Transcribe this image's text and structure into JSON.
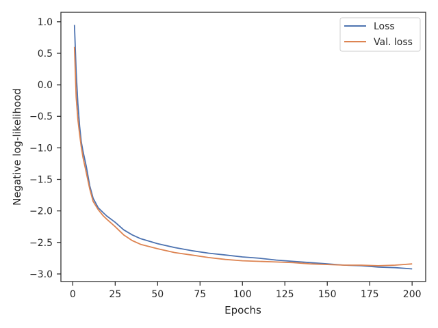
{
  "chart_data": {
    "type": "line",
    "title": "",
    "xlabel": "Epochs",
    "ylabel": "Negative log-likelihood",
    "xlim": [
      -7,
      208
    ],
    "ylim": [
      -3.12,
      1.15
    ],
    "xticks": [
      0,
      25,
      50,
      75,
      100,
      125,
      150,
      175,
      200
    ],
    "yticks": [
      1.0,
      0.5,
      0.0,
      -0.5,
      -1.0,
      -1.5,
      -2.0,
      -2.5,
      -3.0
    ],
    "ytick_labels": [
      "1.0",
      "0.5",
      "0.0",
      "−0.5",
      "−1.0",
      "−1.5",
      "−2.0",
      "−2.5",
      "−3.0"
    ],
    "grid": false,
    "legend_position": "top-right",
    "x": [
      1,
      2,
      3,
      4,
      5,
      6,
      8,
      10,
      12,
      15,
      18,
      20,
      25,
      30,
      35,
      40,
      50,
      60,
      70,
      80,
      90,
      100,
      110,
      120,
      130,
      140,
      150,
      160,
      170,
      180,
      190,
      200
    ],
    "series": [
      {
        "name": "Loss",
        "color": "#4c72b0",
        "values": [
          0.95,
          0.2,
          -0.3,
          -0.65,
          -0.9,
          -1.05,
          -1.3,
          -1.6,
          -1.8,
          -1.95,
          -2.03,
          -2.08,
          -2.18,
          -2.3,
          -2.38,
          -2.44,
          -2.52,
          -2.58,
          -2.63,
          -2.67,
          -2.7,
          -2.73,
          -2.75,
          -2.78,
          -2.8,
          -2.82,
          -2.84,
          -2.86,
          -2.87,
          -2.89,
          -2.9,
          -2.92
        ]
      },
      {
        "name": "Val. loss",
        "color": "#dd8452",
        "values": [
          0.6,
          -0.2,
          -0.55,
          -0.78,
          -0.98,
          -1.15,
          -1.4,
          -1.65,
          -1.85,
          -1.98,
          -2.08,
          -2.13,
          -2.25,
          -2.38,
          -2.47,
          -2.53,
          -2.6,
          -2.66,
          -2.7,
          -2.74,
          -2.77,
          -2.79,
          -2.8,
          -2.81,
          -2.82,
          -2.84,
          -2.85,
          -2.86,
          -2.86,
          -2.87,
          -2.86,
          -2.84
        ]
      }
    ]
  }
}
